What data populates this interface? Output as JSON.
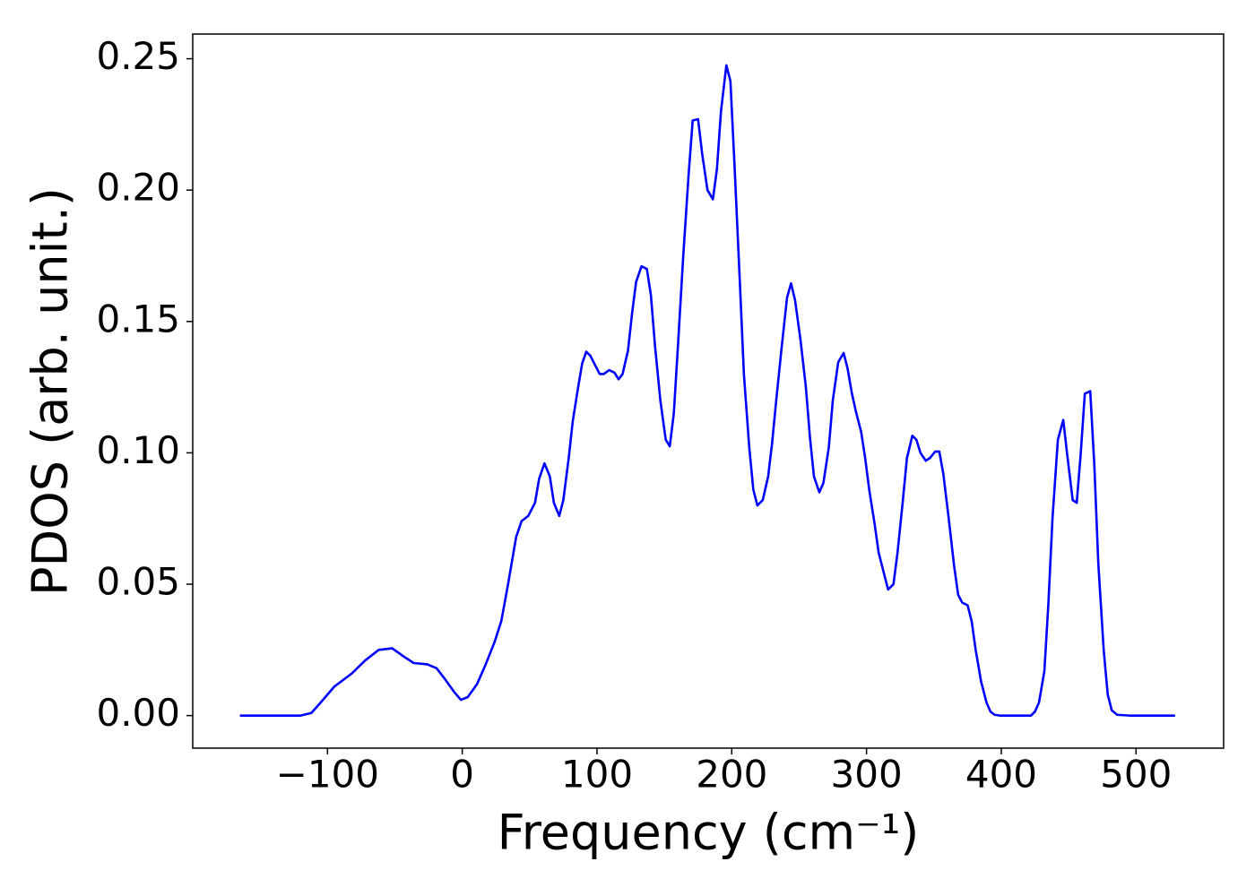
{
  "chart_data": {
    "type": "line",
    "x_label": "Frequency (cm⁻¹)",
    "y_label": "PDOS (arb. unit.)",
    "x": [
      -165,
      -150,
      -135,
      -120,
      -112,
      -105,
      -95,
      -82,
      -72,
      -62,
      -52,
      -42,
      -36,
      -26,
      -19,
      -13,
      -6,
      -1,
      4,
      11,
      17,
      24,
      29,
      34,
      40,
      44,
      49,
      54,
      57,
      61,
      65,
      68,
      72,
      75,
      79,
      82,
      86,
      89,
      92,
      95,
      99,
      102,
      105,
      109,
      113,
      116,
      119,
      123,
      126,
      129,
      133,
      137,
      140,
      143,
      147,
      151,
      154,
      157,
      160,
      164,
      168,
      171,
      175,
      178,
      182,
      186,
      189,
      192,
      196,
      199,
      202,
      206,
      209,
      213,
      216,
      219,
      223,
      227,
      230,
      233,
      237,
      241,
      244,
      247,
      251,
      255,
      258,
      261,
      265,
      268,
      272,
      275,
      279,
      283,
      286,
      289,
      292,
      296,
      299,
      302,
      306,
      309,
      313,
      316,
      320,
      323,
      327,
      330,
      334,
      337,
      340,
      344,
      347,
      351,
      354,
      357,
      361,
      365,
      368,
      371,
      375,
      378,
      381,
      385,
      389,
      392,
      395,
      399,
      410,
      422,
      425,
      428,
      432,
      435,
      438,
      442,
      446,
      449,
      453,
      456,
      459,
      462,
      466,
      469,
      472,
      476,
      479,
      482,
      486,
      495,
      510,
      529
    ],
    "series": [
      {
        "name": "PDOS",
        "color": "#0000ff",
        "values": [
          0,
          0,
          0,
          0,
          0.001,
          0.005,
          0.011,
          0.016,
          0.021,
          0.025,
          0.0256,
          0.022,
          0.02,
          0.0195,
          0.018,
          0.014,
          0.009,
          0.006,
          0.007,
          0.012,
          0.019,
          0.028,
          0.036,
          0.05,
          0.068,
          0.074,
          0.076,
          0.081,
          0.09,
          0.096,
          0.091,
          0.081,
          0.076,
          0.082,
          0.098,
          0.112,
          0.125,
          0.134,
          0.1385,
          0.137,
          0.133,
          0.13,
          0.13,
          0.1315,
          0.1305,
          0.128,
          0.13,
          0.139,
          0.153,
          0.165,
          0.171,
          0.17,
          0.16,
          0.141,
          0.12,
          0.105,
          0.1025,
          0.115,
          0.14,
          0.175,
          0.206,
          0.2265,
          0.227,
          0.214,
          0.2,
          0.1965,
          0.208,
          0.23,
          0.2475,
          0.2415,
          0.21,
          0.165,
          0.13,
          0.102,
          0.086,
          0.08,
          0.082,
          0.091,
          0.104,
          0.12,
          0.14,
          0.159,
          0.1645,
          0.158,
          0.143,
          0.125,
          0.106,
          0.091,
          0.085,
          0.0885,
          0.102,
          0.12,
          0.1345,
          0.138,
          0.132,
          0.123,
          0.116,
          0.108,
          0.098,
          0.086,
          0.073,
          0.062,
          0.054,
          0.048,
          0.05,
          0.062,
          0.082,
          0.098,
          0.1065,
          0.105,
          0.1,
          0.097,
          0.098,
          0.1005,
          0.1005,
          0.092,
          0.075,
          0.057,
          0.046,
          0.043,
          0.042,
          0.036,
          0.025,
          0.013,
          0.005,
          0.0015,
          0.0003,
          0,
          0,
          0,
          0.0015,
          0.005,
          0.017,
          0.043,
          0.075,
          0.105,
          0.1125,
          0.099,
          0.082,
          0.081,
          0.1,
          0.1225,
          0.1235,
          0.096,
          0.058,
          0.025,
          0.008,
          0.002,
          0.0003,
          0,
          0,
          0
        ]
      }
    ],
    "xlim": [
      -200,
      565
    ],
    "ylim": [
      -0.0124,
      0.2594
    ],
    "xticks": [
      {
        "value": -100,
        "label": "−100"
      },
      0,
      100,
      200,
      300,
      400,
      500
    ],
    "yticks": [
      {
        "value": 0,
        "label": "0.00"
      },
      {
        "value": 0.05,
        "label": "0.05"
      },
      {
        "value": 0.1,
        "label": "0.10"
      },
      {
        "value": 0.15,
        "label": "0.15"
      },
      {
        "value": 0.2,
        "label": "0.20"
      },
      {
        "value": 0.25,
        "label": "0.25"
      }
    ],
    "grid": false
  }
}
